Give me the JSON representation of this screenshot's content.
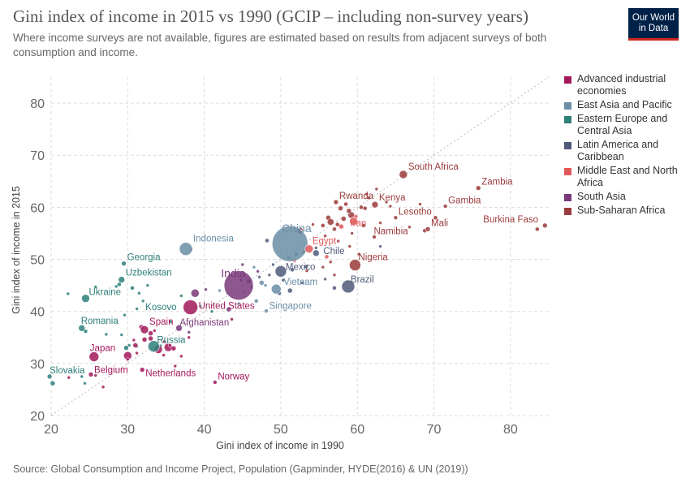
{
  "header": {
    "title": "Gini index of income in 2015 vs 1990 (GCIP – including non-survey years)",
    "subtitle": "Where income surveys are not available, figures are estimated based on results from adjacent surveys of both consumption and income.",
    "logo_line1": "Our World",
    "logo_line2": "in Data"
  },
  "footer": {
    "source": "Source: Global Consumption and Income Project, Population (Gapminder, HYDE(2016) & UN (2019))"
  },
  "chart_data": {
    "type": "scatter",
    "title": "Gini index of income in 2015 vs 1990 (GCIP – including non-survey years)",
    "xlabel": "Gini index of income in 1990",
    "ylabel": "Gini index of income in 2015",
    "xlim": [
      20,
      85
    ],
    "ylim": [
      20,
      85
    ],
    "xticks": [
      20,
      30,
      40,
      50,
      60,
      70,
      80
    ],
    "yticks": [
      20,
      30,
      40,
      50,
      60,
      70,
      80
    ],
    "grid": true,
    "diagonal_reference_line": true,
    "legend_placement": "right",
    "series": [
      {
        "name": "Advanced industrial economies",
        "color": "#a2195b"
      },
      {
        "name": "East Asia and Pacific",
        "color": "#6a8ea5"
      },
      {
        "name": "Eastern Europe and Central Asia",
        "color": "#2e7f7a"
      },
      {
        "name": "Latin America and Caribbean",
        "color": "#4f5a7a"
      },
      {
        "name": "Middle East and North Africa",
        "color": "#e0585b"
      },
      {
        "name": "South Asia",
        "color": "#7a3a7a"
      },
      {
        "name": "Sub-Saharan Africa",
        "color": "#9b3a3a"
      }
    ],
    "labeled_points": [
      {
        "label": "South Africa",
        "x": 66.0,
        "y": 66.3,
        "r": 5,
        "region": 6
      },
      {
        "label": "Zambia",
        "x": 75.8,
        "y": 63.7,
        "r": 3,
        "region": 6
      },
      {
        "label": "Gambia",
        "x": 71.5,
        "y": 60.2,
        "r": 2.5,
        "region": 6
      },
      {
        "label": "Burkina Faso",
        "x": 84.5,
        "y": 56.5,
        "r": 3,
        "region": 6
      },
      {
        "label": "Mali",
        "x": 69.2,
        "y": 55.8,
        "r": 3,
        "region": 6
      },
      {
        "label": "Kenya",
        "x": 62.3,
        "y": 60.5,
        "r": 4,
        "region": 6
      },
      {
        "label": "Lesotho",
        "x": 65.0,
        "y": 58.0,
        "r": 2.5,
        "region": 6
      },
      {
        "label": "Rwanda",
        "x": 57.2,
        "y": 61.0,
        "r": 3,
        "region": 6
      },
      {
        "label": "Iran",
        "x": 59.5,
        "y": 57.3,
        "r": 5,
        "region": 4
      },
      {
        "label": "Namibia",
        "x": 62.2,
        "y": 54.3,
        "r": 2.5,
        "region": 6
      },
      {
        "label": "Nigeria",
        "x": 59.7,
        "y": 48.9,
        "r": 7,
        "region": 6
      },
      {
        "label": "China",
        "x": 51.2,
        "y": 53.0,
        "r": 22,
        "region": 1
      },
      {
        "label": "Egypt",
        "x": 53.7,
        "y": 52.0,
        "r": 5,
        "region": 4
      },
      {
        "label": "Chile",
        "x": 54.6,
        "y": 51.2,
        "r": 4,
        "region": 3
      },
      {
        "label": "Mexico",
        "x": 50.0,
        "y": 47.7,
        "r": 7,
        "region": 3
      },
      {
        "label": "Brazil",
        "x": 58.8,
        "y": 44.8,
        "r": 8,
        "region": 3
      },
      {
        "label": "Vietnam",
        "x": 49.4,
        "y": 44.3,
        "r": 6,
        "region": 1
      },
      {
        "label": "Indonesia",
        "x": 37.6,
        "y": 52.0,
        "r": 8,
        "region": 1
      },
      {
        "label": "India",
        "x": 44.5,
        "y": 45.0,
        "r": 18,
        "region": 5
      },
      {
        "label": "United States",
        "x": 38.2,
        "y": 40.8,
        "r": 9,
        "region": 0
      },
      {
        "label": "Singapore",
        "x": 48.1,
        "y": 40.1,
        "r": 2.5,
        "region": 1
      },
      {
        "label": "Georgia",
        "x": 29.5,
        "y": 49.2,
        "r": 3,
        "region": 2
      },
      {
        "label": "Uzbekistan",
        "x": 29.2,
        "y": 46.1,
        "r": 4,
        "region": 2
      },
      {
        "label": "Ukraine",
        "x": 24.5,
        "y": 42.5,
        "r": 5,
        "region": 2
      },
      {
        "label": "Kosovo",
        "x": 32.0,
        "y": 42.0,
        "r": 2,
        "region": 2
      },
      {
        "label": "Romania",
        "x": 24.0,
        "y": 36.8,
        "r": 4,
        "region": 2
      },
      {
        "label": "Afghanistan",
        "x": 36.7,
        "y": 36.8,
        "r": 4,
        "region": 5
      },
      {
        "label": "Spain",
        "x": 32.2,
        "y": 36.5,
        "r": 5,
        "region": 0
      },
      {
        "label": "Russia",
        "x": 33.4,
        "y": 33.3,
        "r": 7,
        "region": 2
      },
      {
        "label": "Japan",
        "x": 25.6,
        "y": 31.3,
        "r": 6,
        "region": 0
      },
      {
        "label": "Netherlands",
        "x": 31.9,
        "y": 28.8,
        "r": 3,
        "region": 0
      },
      {
        "label": "Belgium",
        "x": 25.2,
        "y": 27.9,
        "r": 3,
        "region": 0
      },
      {
        "label": "Slovakia",
        "x": 19.8,
        "y": 27.5,
        "r": 3,
        "region": 2
      },
      {
        "label": "Norway",
        "x": 41.4,
        "y": 26.4,
        "r": 2.5,
        "region": 0
      }
    ],
    "other_points": [
      [
        62.5,
        63.5,
        2,
        6
      ],
      [
        61.2,
        62.5,
        2,
        6
      ],
      [
        63.8,
        61.0,
        2,
        6
      ],
      [
        60.5,
        60.0,
        2.5,
        6
      ],
      [
        58.5,
        60.6,
        2.5,
        6
      ],
      [
        57.8,
        59.8,
        3,
        6
      ],
      [
        56.2,
        58.0,
        3,
        6
      ],
      [
        58.2,
        57.8,
        3,
        6
      ],
      [
        56.5,
        57.2,
        4,
        6
      ],
      [
        55.5,
        56.5,
        2.5,
        6
      ],
      [
        57.0,
        55.8,
        2.5,
        6
      ],
      [
        60.8,
        56.5,
        2.5,
        6
      ],
      [
        59.2,
        58.5,
        4,
        6
      ],
      [
        58.9,
        59.3,
        3,
        6
      ],
      [
        61.0,
        59.8,
        2.5,
        6
      ],
      [
        63.0,
        57.0,
        2,
        6
      ],
      [
        66.8,
        56.2,
        2,
        6
      ],
      [
        68.8,
        55.5,
        2.5,
        6
      ],
      [
        70.2,
        58.0,
        2.5,
        6
      ],
      [
        83.5,
        55.8,
        2.5,
        6
      ],
      [
        57.4,
        56.7,
        2.5,
        6
      ],
      [
        52.5,
        55.5,
        4,
        6
      ],
      [
        55.8,
        54.5,
        2,
        6
      ],
      [
        57.5,
        53.5,
        2,
        6
      ],
      [
        59.0,
        52.5,
        2,
        6
      ],
      [
        60.2,
        51.0,
        2,
        6
      ],
      [
        56.5,
        49.5,
        2,
        6
      ],
      [
        53.4,
        47.8,
        2,
        6
      ],
      [
        57.0,
        47.0,
        2,
        6
      ],
      [
        55.5,
        48.5,
        2,
        6
      ],
      [
        59.3,
        55.0,
        2,
        6
      ],
      [
        54.2,
        56.7,
        2,
        6
      ],
      [
        68.2,
        60.6,
        2,
        6
      ],
      [
        61.5,
        61.8,
        2,
        6
      ],
      [
        64.3,
        60.2,
        2,
        6
      ],
      [
        52.0,
        51.0,
        2.5,
        3
      ],
      [
        53.3,
        48.6,
        2.5,
        3
      ],
      [
        51.2,
        44.0,
        3,
        3
      ],
      [
        57.0,
        44.5,
        2.5,
        3
      ],
      [
        52.8,
        45.5,
        2,
        3
      ],
      [
        48.2,
        53.6,
        2.5,
        3
      ],
      [
        49.0,
        49.0,
        2,
        3
      ],
      [
        51.5,
        48.0,
        2.5,
        3
      ],
      [
        50.3,
        46.0,
        2,
        3
      ],
      [
        55.8,
        46.2,
        2,
        3
      ],
      [
        54.6,
        52.2,
        2,
        3
      ],
      [
        63.0,
        52.5,
        2,
        3
      ],
      [
        48.5,
        47.0,
        2,
        3
      ],
      [
        49.8,
        43.5,
        2.5,
        3
      ],
      [
        47.2,
        46.6,
        2,
        3
      ],
      [
        45.2,
        43.8,
        2,
        1
      ],
      [
        46.8,
        42.0,
        2.5,
        1
      ],
      [
        43.0,
        43.5,
        2,
        1
      ],
      [
        44.5,
        41.5,
        2,
        1
      ],
      [
        47.5,
        45.5,
        3,
        1
      ],
      [
        51.0,
        50.3,
        2.5,
        1
      ],
      [
        39.5,
        41.0,
        2,
        1
      ],
      [
        42.0,
        44.0,
        2,
        1
      ],
      [
        46.5,
        48.5,
        2,
        1
      ],
      [
        48.0,
        45.0,
        2,
        1
      ],
      [
        45.8,
        45.8,
        3,
        2
      ],
      [
        46.2,
        44.6,
        2,
        2
      ],
      [
        24.5,
        36.2,
        2.5,
        2
      ],
      [
        27.2,
        35.6,
        2,
        2
      ],
      [
        29.2,
        35.5,
        2,
        2
      ],
      [
        30.2,
        33.5,
        2,
        2
      ],
      [
        31.2,
        33.3,
        2,
        2
      ],
      [
        29.8,
        33.0,
        3,
        2
      ],
      [
        34.3,
        33.4,
        2,
        2
      ],
      [
        22.2,
        43.4,
        2,
        2
      ],
      [
        25.8,
        44.7,
        2,
        2
      ],
      [
        28.5,
        44.8,
        2,
        2
      ],
      [
        30.6,
        44.5,
        2.5,
        2
      ],
      [
        32.6,
        45.0,
        2,
        2
      ],
      [
        28.9,
        45.2,
        2.5,
        2
      ],
      [
        31.5,
        43.5,
        2,
        2
      ],
      [
        20.2,
        26.2,
        3,
        2
      ],
      [
        24.4,
        26.2,
        2,
        2
      ],
      [
        29.6,
        39.3,
        2,
        2
      ],
      [
        31.2,
        40.5,
        2,
        2
      ],
      [
        35.6,
        38.0,
        2,
        2
      ],
      [
        37.0,
        43.0,
        2,
        2
      ],
      [
        41.0,
        40.0,
        2,
        2
      ],
      [
        24.0,
        27.5,
        2,
        2
      ],
      [
        38.8,
        43.5,
        5,
        5
      ],
      [
        43.2,
        40.4,
        3,
        5
      ],
      [
        45.0,
        49.0,
        2,
        5
      ],
      [
        47.0,
        47.7,
        2,
        5
      ],
      [
        38.0,
        36.0,
        2,
        5
      ],
      [
        40.2,
        44.2,
        2,
        5
      ],
      [
        44.8,
        46.0,
        2,
        5
      ],
      [
        32.2,
        34.6,
        3,
        0
      ],
      [
        33.0,
        34.8,
        3,
        0
      ],
      [
        31.0,
        33.5,
        3,
        0
      ],
      [
        34.0,
        32.7,
        5,
        0
      ],
      [
        35.3,
        33.1,
        5,
        0
      ],
      [
        30.0,
        31.5,
        5,
        0
      ],
      [
        36.0,
        32.9,
        3,
        0
      ],
      [
        31.8,
        37.0,
        3,
        0
      ],
      [
        33.0,
        35.8,
        3,
        0
      ],
      [
        34.8,
        34.2,
        2,
        0
      ],
      [
        37.0,
        31.4,
        2,
        0
      ],
      [
        36.2,
        29.5,
        2,
        0
      ],
      [
        31.2,
        32.0,
        2,
        0
      ],
      [
        30.8,
        34.5,
        2,
        0
      ],
      [
        33.5,
        36.3,
        2,
        0
      ],
      [
        35.5,
        33.5,
        2,
        0
      ],
      [
        38.0,
        35.0,
        2,
        0
      ],
      [
        30.0,
        30.8,
        2,
        0
      ],
      [
        26.8,
        25.5,
        2,
        0
      ],
      [
        22.3,
        27.3,
        2,
        0
      ],
      [
        25.8,
        27.7,
        2,
        0
      ],
      [
        34.7,
        31.6,
        2,
        0
      ],
      [
        38.3,
        51.9,
        2,
        0
      ],
      [
        43.6,
        38.5,
        2,
        0
      ],
      [
        51.8,
        49.8,
        2.5,
        4
      ],
      [
        53.0,
        51.4,
        2.5,
        4
      ],
      [
        56.0,
        50.5,
        2.5,
        4
      ],
      [
        57.9,
        56.3,
        3,
        4
      ],
      [
        59.8,
        58.2,
        2.5,
        4
      ]
    ]
  }
}
